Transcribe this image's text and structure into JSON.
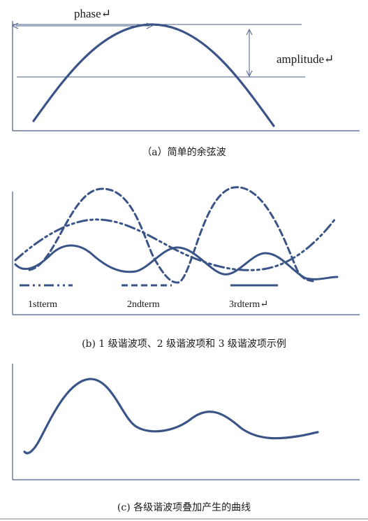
{
  "colors": {
    "curve": "#3b5487",
    "axis": "#4a5f8a",
    "text": "#1a1a1a"
  },
  "panel_a": {
    "labels": {
      "phase": "phase↵",
      "amplitude": "amplitude↵"
    },
    "caption": "（a）简单的余弦波"
  },
  "panel_b": {
    "term_labels": {
      "first": "1stterm",
      "second": "2ndterm",
      "third": "3rdterm↵"
    },
    "legend_styles": [
      "dash-dot",
      "dashed",
      "solid"
    ],
    "caption": "(b) 1 级谐波项、2 级谐波项和 3 级谐波项示例"
  },
  "panel_c": {
    "caption": "(c)  各级谐波项叠加产生的曲线"
  }
}
